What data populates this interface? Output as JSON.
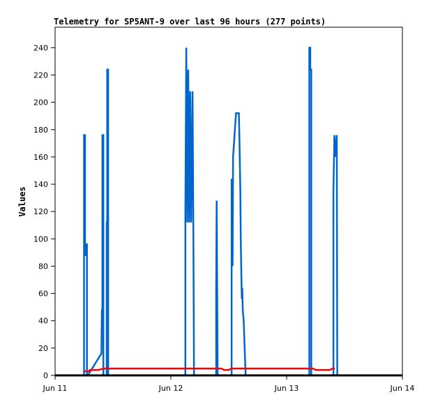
{
  "chart_data": {
    "type": "line",
    "title": "Telemetry for SP5ANT-9 over last 96 hours (277 points)",
    "xlabel": "",
    "ylabel": "Values",
    "x_unit": "hours since Jun 11 00:00",
    "xlim": [
      0,
      72
    ],
    "ylim": [
      0,
      255
    ],
    "xticks": [
      {
        "label": "Jun 11",
        "value": 0
      },
      {
        "label": "Jun 12",
        "value": 24
      },
      {
        "label": "Jun 13",
        "value": 48
      },
      {
        "label": "Jun 14",
        "value": 72
      }
    ],
    "yticks": [
      0,
      20,
      40,
      60,
      80,
      100,
      120,
      140,
      160,
      180,
      200,
      220,
      240
    ],
    "grid": false,
    "series": [
      {
        "name": "blue",
        "color": "#0066cc",
        "points": [
          [
            6.0,
            0
          ],
          [
            6.0,
            176
          ],
          [
            6.2,
            176
          ],
          [
            6.2,
            88
          ],
          [
            6.4,
            88
          ],
          [
            6.4,
            96
          ],
          [
            6.6,
            96
          ],
          [
            6.6,
            0
          ],
          [
            6.8,
            0
          ],
          [
            9.6,
            16
          ],
          [
            9.7,
            48
          ],
          [
            9.8,
            48
          ],
          [
            9.8,
            176
          ],
          [
            10.0,
            176
          ],
          [
            10.0,
            0
          ],
          [
            10.7,
            0
          ],
          [
            10.7,
            112
          ],
          [
            10.8,
            112
          ],
          [
            10.8,
            224
          ],
          [
            11.0,
            224
          ],
          [
            11.0,
            0
          ],
          [
            27.0,
            0
          ],
          [
            27.0,
            120
          ],
          [
            27.2,
            240
          ],
          [
            27.4,
            112
          ],
          [
            27.6,
            224
          ],
          [
            27.8,
            112
          ],
          [
            28.0,
            208
          ],
          [
            28.2,
            112
          ],
          [
            28.5,
            208
          ],
          [
            28.7,
            80
          ],
          [
            28.8,
            0
          ],
          [
            33.4,
            0
          ],
          [
            33.4,
            64
          ],
          [
            33.5,
            128
          ],
          [
            33.6,
            64
          ],
          [
            33.7,
            0
          ],
          [
            36.6,
            0
          ],
          [
            36.6,
            144
          ],
          [
            36.8,
            80
          ],
          [
            36.9,
            160
          ],
          [
            37.2,
            176
          ],
          [
            37.5,
            192
          ],
          [
            38.1,
            192
          ],
          [
            38.2,
            176
          ],
          [
            38.4,
            136
          ],
          [
            38.5,
            96
          ],
          [
            38.7,
            56
          ],
          [
            38.8,
            64
          ],
          [
            38.9,
            48
          ],
          [
            39.1,
            40
          ],
          [
            39.3,
            20
          ],
          [
            39.5,
            0
          ],
          [
            52.7,
            0
          ],
          [
            52.7,
            240
          ],
          [
            52.9,
            240
          ],
          [
            52.9,
            224
          ],
          [
            53.1,
            224
          ],
          [
            53.1,
            0
          ],
          [
            57.7,
            0
          ],
          [
            57.7,
            136
          ],
          [
            57.9,
            176
          ],
          [
            58.1,
            160
          ],
          [
            58.4,
            176
          ],
          [
            58.5,
            0
          ]
        ]
      },
      {
        "name": "red",
        "color": "#ff0000",
        "points": [
          [
            6.0,
            3
          ],
          [
            7.0,
            3
          ],
          [
            7.2,
            4
          ],
          [
            9.0,
            4
          ],
          [
            10.0,
            5
          ],
          [
            34.5,
            5
          ],
          [
            35.0,
            4
          ],
          [
            36.0,
            4
          ],
          [
            36.5,
            5
          ],
          [
            53.5,
            5
          ],
          [
            54.0,
            4
          ],
          [
            57.0,
            4
          ],
          [
            57.5,
            5
          ],
          [
            58.0,
            5
          ]
        ]
      },
      {
        "name": "baseline",
        "color": "#000000",
        "points": [
          [
            0,
            0
          ],
          [
            72,
            0
          ]
        ]
      }
    ]
  }
}
